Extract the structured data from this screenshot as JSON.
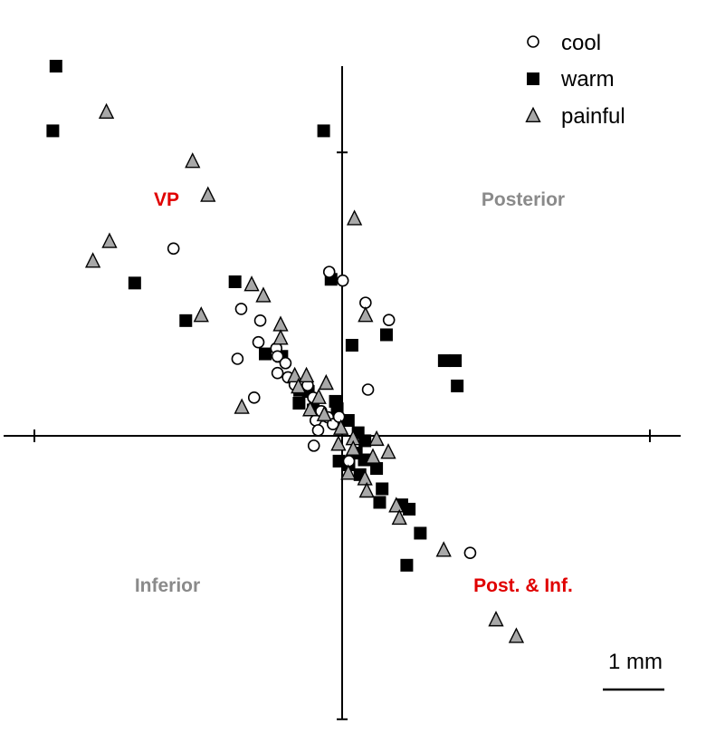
{
  "chart_data": {
    "type": "scatter",
    "title": "",
    "xlabel": "",
    "ylabel": "",
    "units": "mm",
    "xlim": [
      -5.5,
      5.5
    ],
    "ylim": [
      -4.6,
      6.0
    ],
    "x_ticks": [
      -5,
      0,
      5
    ],
    "y_ticks": [
      -4.6,
      4.6
    ],
    "grid": false,
    "legend_position": "top-right",
    "region_labels": [
      {
        "text": "VP",
        "color": "#e00000",
        "x": -2.85,
        "y": 3.83
      },
      {
        "text": "Posterior",
        "color": "#8a8a8a",
        "x": 2.7,
        "y": 3.83
      },
      {
        "text": "Inferior",
        "color": "#8a8a8a",
        "x": -2.8,
        "y": -2.45
      },
      {
        "text": "Post. & Inf.",
        "color": "#e00000",
        "x": 2.6,
        "y": -2.45
      }
    ],
    "scale_bar": {
      "label": "1 mm",
      "length": 1.0
    },
    "series": [
      {
        "name": "cool",
        "marker": "open-circle",
        "color": "#ffffff",
        "points": [
          [
            -2.74,
            3.04
          ],
          [
            -0.21,
            2.66
          ],
          [
            0.01,
            2.52
          ],
          [
            0.38,
            2.16
          ],
          [
            0.76,
            1.88
          ],
          [
            -1.64,
            2.06
          ],
          [
            -1.33,
            1.87
          ],
          [
            -1.36,
            1.52
          ],
          [
            -1.7,
            1.25
          ],
          [
            -1.07,
            1.42
          ],
          [
            -1.05,
            1.29
          ],
          [
            -0.92,
            1.18
          ],
          [
            -1.05,
            1.02
          ],
          [
            -1.43,
            0.62
          ],
          [
            -0.88,
            0.95
          ],
          [
            -0.77,
            0.83
          ],
          [
            -0.56,
            0.82
          ],
          [
            -0.47,
            0.62
          ],
          [
            -0.34,
            0.4
          ],
          [
            -0.43,
            0.25
          ],
          [
            -0.23,
            0.3
          ],
          [
            -0.15,
            0.19
          ],
          [
            -0.05,
            0.31
          ],
          [
            -0.39,
            0.09
          ],
          [
            -0.46,
            -0.16
          ],
          [
            0.42,
            0.75
          ],
          [
            0.11,
            -0.41
          ],
          [
            2.08,
            -1.9
          ]
        ]
      },
      {
        "name": "warm",
        "marker": "filled-square",
        "color": "#000000",
        "points": [
          [
            -4.65,
            6.0
          ],
          [
            -4.7,
            4.95
          ],
          [
            -0.3,
            4.95
          ],
          [
            -3.37,
            2.48
          ],
          [
            -2.54,
            1.87
          ],
          [
            -1.74,
            2.5
          ],
          [
            -1.25,
            1.33
          ],
          [
            -0.98,
            1.29
          ],
          [
            -0.18,
            2.54
          ],
          [
            0.16,
            1.47
          ],
          [
            0.72,
            1.64
          ],
          [
            1.87,
            0.81
          ],
          [
            1.66,
            1.22
          ],
          [
            1.84,
            1.22
          ],
          [
            -0.69,
            0.74
          ],
          [
            -0.55,
            0.72
          ],
          [
            -0.7,
            0.53
          ],
          [
            -0.47,
            0.42
          ],
          [
            -0.37,
            0.33
          ],
          [
            -0.11,
            0.56
          ],
          [
            -0.08,
            0.44
          ],
          [
            0.1,
            0.25
          ],
          [
            0.26,
            0.05
          ],
          [
            0.37,
            -0.08
          ],
          [
            0.23,
            -0.28
          ],
          [
            0.11,
            -0.47
          ],
          [
            0.36,
            -0.39
          ],
          [
            0.56,
            -0.53
          ],
          [
            0.29,
            -0.63
          ],
          [
            0.65,
            -0.86
          ],
          [
            0.61,
            -1.08
          ],
          [
            0.97,
            -1.12
          ],
          [
            1.09,
            -1.19
          ],
          [
            1.27,
            -1.58
          ],
          [
            1.05,
            -2.1
          ],
          [
            -0.05,
            -0.41
          ]
        ]
      },
      {
        "name": "painful",
        "marker": "gray-triangle",
        "color": "#a8a8a8",
        "points": [
          [
            -3.83,
            5.25
          ],
          [
            -2.43,
            4.45
          ],
          [
            -2.18,
            3.9
          ],
          [
            -3.78,
            3.15
          ],
          [
            -4.05,
            2.83
          ],
          [
            -2.29,
            1.95
          ],
          [
            -1.47,
            2.45
          ],
          [
            -1.28,
            2.27
          ],
          [
            -1.0,
            1.8
          ],
          [
            -1.0,
            1.58
          ],
          [
            0.2,
            3.52
          ],
          [
            0.38,
            1.95
          ],
          [
            -1.63,
            0.46
          ],
          [
            -0.77,
            0.97
          ],
          [
            -0.71,
            0.79
          ],
          [
            -0.58,
            0.97
          ],
          [
            -0.26,
            0.85
          ],
          [
            -0.38,
            0.62
          ],
          [
            -0.29,
            0.34
          ],
          [
            -0.52,
            0.42
          ],
          [
            -0.02,
            0.12
          ],
          [
            0.18,
            -0.05
          ],
          [
            0.56,
            -0.06
          ],
          [
            0.75,
            -0.27
          ],
          [
            0.5,
            -0.35
          ],
          [
            0.1,
            -0.61
          ],
          [
            0.37,
            -0.7
          ],
          [
            0.4,
            -0.9
          ],
          [
            0.88,
            -1.14
          ],
          [
            0.93,
            -1.34
          ],
          [
            1.65,
            -1.86
          ],
          [
            2.5,
            -2.99
          ],
          [
            2.83,
            -3.26
          ],
          [
            0.18,
            -0.22
          ],
          [
            -0.06,
            -0.14
          ]
        ]
      }
    ]
  }
}
